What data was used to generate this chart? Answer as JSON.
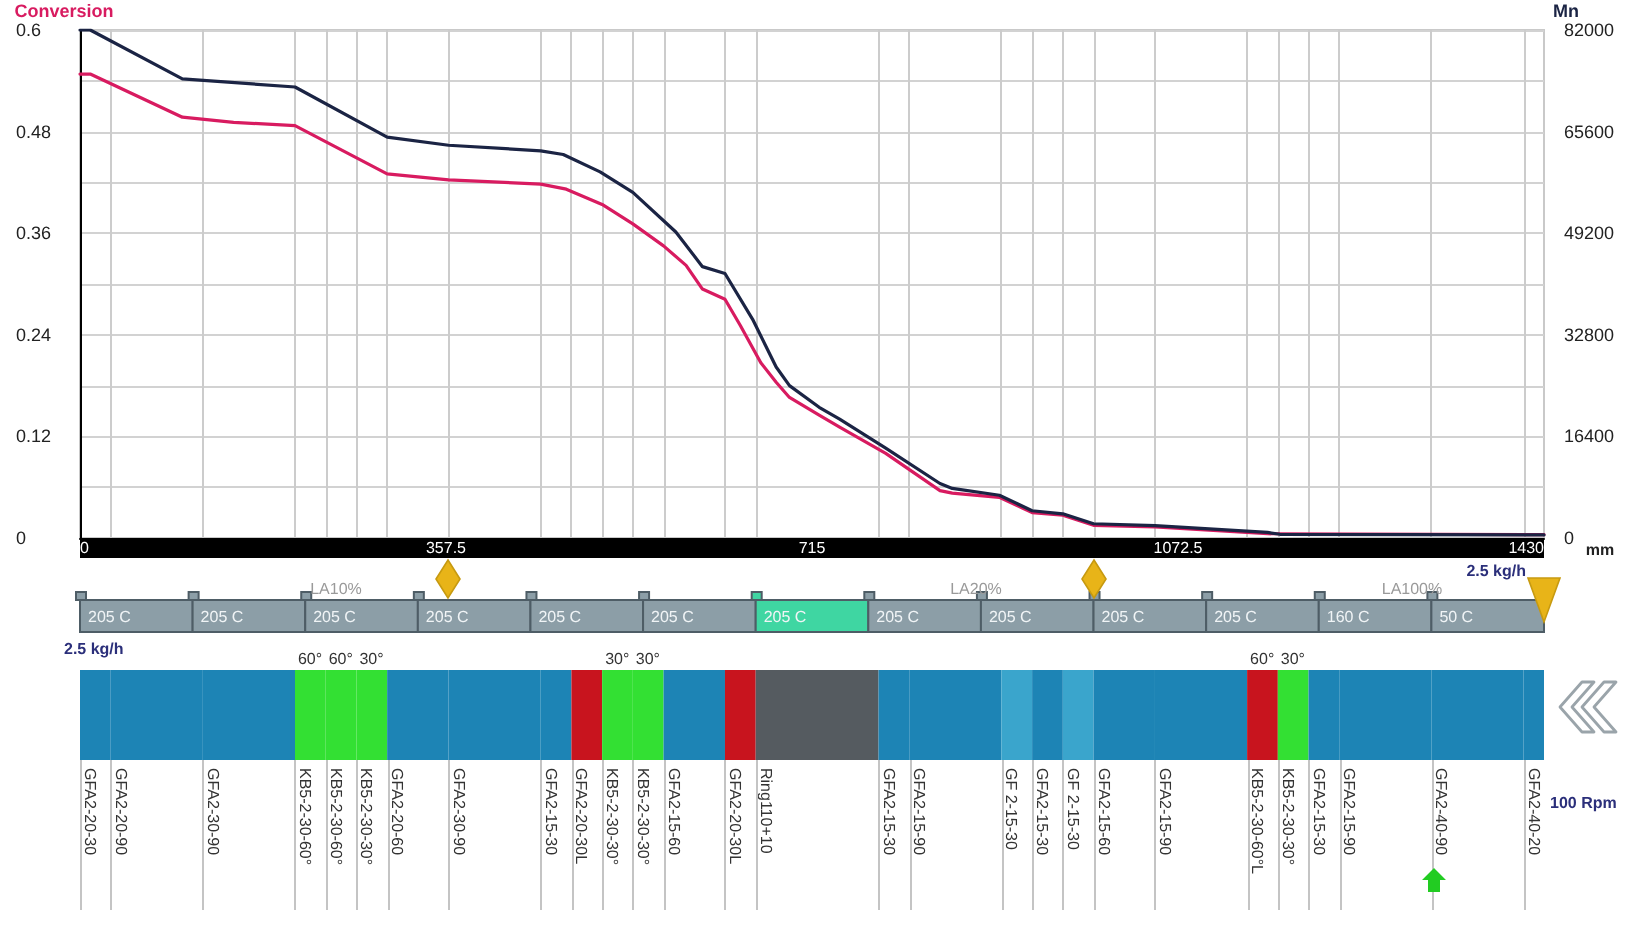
{
  "chart_data": [
    {
      "type": "line",
      "ylabel": "Conversion",
      "y2label": "Mn",
      "xlabel": "mm",
      "xlim": [
        0,
        1430
      ],
      "xticks": [
        0,
        357.5,
        715,
        1072.5,
        1430
      ],
      "ylim": [
        0,
        0.6
      ],
      "yticks": [
        0,
        {
          "value": 0.06,
          "label": null
        },
        0.12,
        {
          "value": 0.18,
          "label": null
        },
        0.24,
        {
          "value": 0.3,
          "label": null
        },
        0.36,
        {
          "value": 0.42,
          "label": null
        },
        0.48,
        {
          "value": 0.54,
          "label": null
        },
        0.6
      ],
      "y2lim": [
        0,
        82000
      ],
      "y2ticks": [
        0,
        16400,
        32800,
        49200,
        65600,
        82000
      ],
      "grid": "y",
      "marker": "none",
      "series": [
        {
          "color": "#d81b60",
          "x": [
            0,
            10,
            100,
            150,
            210,
            300,
            360,
            450,
            475,
            510,
            540,
            570,
            592,
            608,
            630,
            645,
            665,
            680,
            693,
            722,
            742,
            787,
            840,
            852,
            898,
            930,
            960,
            990,
            1050,
            1160,
            1430
          ],
          "values": [
            0.548,
            0.548,
            0.497,
            0.491,
            0.487,
            0.43,
            0.423,
            0.418,
            0.412,
            0.394,
            0.371,
            0.345,
            0.322,
            0.294,
            0.282,
            0.251,
            0.207,
            0.184,
            0.166,
            0.145,
            0.131,
            0.1,
            0.056,
            0.053,
            0.048,
            0.03,
            0.027,
            0.015,
            0.013,
            0.005,
            0.004
          ]
        },
        {
          "color": "#1b2444",
          "axis": "y2",
          "x": [
            0,
            10,
            100,
            210,
            300,
            360,
            450,
            472,
            508,
            540,
            582,
            608,
            630,
            657,
            680,
            693,
            722,
            742,
            787,
            840,
            852,
            898,
            930,
            960,
            990,
            1050,
            1160,
            1172,
            1430
          ],
          "values": [
            82000,
            82000,
            74100,
            72800,
            64700,
            63400,
            62500,
            61900,
            59100,
            55800,
            49400,
            43800,
            42700,
            35300,
            27600,
            24600,
            21100,
            19200,
            14500,
            8800,
            8000,
            6900,
            4400,
            3900,
            2300,
            2000,
            900,
            600,
            500
          ]
        }
      ],
      "ref_lines": [
        {
          "axis": "x",
          "value": 30,
          "color": "#cccccc"
        },
        {
          "axis": "x",
          "value": 120,
          "color": "#cccccc"
        },
        {
          "axis": "x",
          "value": 210,
          "color": "#cccccc"
        },
        {
          "axis": "x",
          "value": 240,
          "color": "#cccccc"
        },
        {
          "axis": "x",
          "value": 270,
          "color": "#cccccc"
        },
        {
          "axis": "x",
          "value": 300,
          "color": "#cccccc"
        },
        {
          "axis": "x",
          "value": 360,
          "color": "#cccccc"
        },
        {
          "axis": "x",
          "value": 450,
          "color": "#cccccc"
        },
        {
          "axis": "x",
          "value": 480,
          "color": "#cccccc"
        },
        {
          "axis": "x",
          "value": 510,
          "color": "#cccccc"
        },
        {
          "axis": "x",
          "value": 540,
          "color": "#cccccc"
        },
        {
          "axis": "x",
          "value": 570,
          "color": "#cccccc"
        },
        {
          "axis": "x",
          "value": 630,
          "color": "#cccccc"
        },
        {
          "axis": "x",
          "value": 660,
          "color": "#cccccc"
        },
        {
          "axis": "x",
          "value": 780,
          "color": "#cccccc"
        },
        {
          "axis": "x",
          "value": 810,
          "color": "#cccccc"
        },
        {
          "axis": "x",
          "value": 900,
          "color": "#cccccc"
        },
        {
          "axis": "x",
          "value": 930,
          "color": "#cccccc"
        },
        {
          "axis": "x",
          "value": 960,
          "color": "#cccccc"
        },
        {
          "axis": "x",
          "value": 990,
          "color": "#cccccc"
        },
        {
          "axis": "x",
          "value": 1050,
          "color": "#cccccc"
        },
        {
          "axis": "x",
          "value": 1140,
          "color": "#cccccc"
        },
        {
          "axis": "x",
          "value": 1170,
          "color": "#cccccc"
        },
        {
          "axis": "x",
          "value": 1200,
          "color": "#cccccc"
        },
        {
          "axis": "x",
          "value": 1230,
          "color": "#cccccc"
        },
        {
          "axis": "x",
          "value": 1320,
          "color": "#cccccc"
        },
        {
          "axis": "x",
          "value": 1410,
          "color": "#cccccc"
        }
      ]
    },
    {
      "type": "other",
      "categories": [
        "205 C",
        "205 C",
        "205 C",
        "205 C",
        "205 C",
        "205 C",
        "205 C",
        "205 C",
        "205 C",
        "205 C",
        "205 C",
        "160 C",
        "50 C"
      ],
      "colors": [
        "#8c9ea7",
        "#8c9ea7",
        "#8c9ea7",
        "#8c9ea7",
        "#8c9ea7",
        "#8c9ea7",
        "#3fd6a2",
        "#8c9ea7",
        "#8c9ea7",
        "#8c9ea7",
        "#8c9ea7",
        "#8c9ea7",
        "#8c9ea7"
      ],
      "annotations": [
        "LA10%",
        "LA20%",
        "LA100%",
        "2.5 kg/h"
      ]
    },
    {
      "type": "bar",
      "orientation": "horizontal",
      "stacked": true,
      "categories": [
        null
      ],
      "xlim": [
        0,
        1430
      ],
      "tick_labels": false,
      "series": [
        {
          "name": "GFA2-20-30",
          "color": "#1d84b5",
          "values": [
            30
          ]
        },
        {
          "name": "GFA2-20-90",
          "color": "#1d84b5",
          "values": [
            90
          ]
        },
        {
          "name": "GFA2-30-90",
          "color": "#1d84b5",
          "values": [
            90
          ]
        },
        {
          "name": "KB5-2-30-60°",
          "color": "#33e033",
          "values": [
            30
          ]
        },
        {
          "name": "KB5-2-30-60°",
          "color": "#33e033",
          "values": [
            30
          ]
        },
        {
          "name": "KB5-2-30-30°",
          "color": "#33e033",
          "values": [
            30
          ]
        },
        {
          "name": "GFA2-20-60",
          "color": "#1d84b5",
          "values": [
            60
          ]
        },
        {
          "name": "GFA2-30-90",
          "color": "#1d84b5",
          "values": [
            90
          ]
        },
        {
          "name": "GFA2-15-30",
          "color": "#1d84b5",
          "values": [
            30
          ]
        },
        {
          "name": "GFA2-20-30L",
          "color": "#c8141e",
          "values": [
            30
          ]
        },
        {
          "name": "KB5-2-30-30°",
          "color": "#33e033",
          "values": [
            30
          ]
        },
        {
          "name": "KB5-2-30-30°",
          "color": "#33e033",
          "values": [
            30
          ]
        },
        {
          "name": "GFA2-15-60",
          "color": "#1d84b5",
          "values": [
            60
          ]
        },
        {
          "name": "GFA2-20-30L",
          "color": "#c8141e",
          "values": [
            30
          ]
        },
        {
          "name": "Ring110+10",
          "color": "#555b60",
          "values": [
            120
          ]
        },
        {
          "name": "GFA2-15-30",
          "color": "#1d84b5",
          "values": [
            30
          ]
        },
        {
          "name": "GFA2-15-90",
          "color": "#1d84b5",
          "values": [
            90
          ]
        },
        {
          "name": "GF 2-15-30",
          "color": "#3aa5cc",
          "values": [
            30
          ]
        },
        {
          "name": "GFA2-15-30",
          "color": "#1d84b5",
          "values": [
            30
          ]
        },
        {
          "name": "GF 2-15-30",
          "color": "#3aa5cc",
          "values": [
            30
          ]
        },
        {
          "name": "GFA2-15-60",
          "color": "#1d84b5",
          "values": [
            60
          ]
        },
        {
          "name": "GFA2-15-90",
          "color": "#1d84b5",
          "values": [
            90
          ]
        },
        {
          "name": "KB5-2-30-60°L",
          "color": "#c8141e",
          "values": [
            30
          ]
        },
        {
          "name": "KB5-2-30-30°",
          "color": "#33e033",
          "values": [
            30
          ]
        },
        {
          "name": "GFA2-15-30",
          "color": "#1d84b5",
          "values": [
            30
          ]
        },
        {
          "name": "GFA2-15-90",
          "color": "#1d84b5",
          "values": [
            90
          ]
        },
        {
          "name": "GFA2-40-90",
          "color": "#1d84b5",
          "values": [
            90
          ]
        },
        {
          "name": "GFA2-40-20",
          "color": "#1d84b5",
          "values": [
            20
          ]
        }
      ],
      "annotations": [
        "60°",
        "60°",
        "30°",
        "30°",
        "30°",
        "60°",
        "30°",
        "2.5 kg/h",
        "100 Rpm"
      ]
    }
  ]
}
